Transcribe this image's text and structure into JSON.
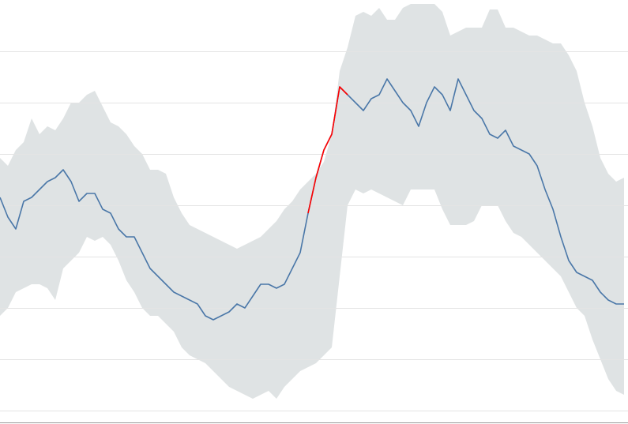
{
  "chart_data": {
    "type": "line",
    "x": [
      0,
      1,
      2,
      3,
      4,
      5,
      6,
      7,
      8,
      9,
      10,
      11,
      12,
      13,
      14,
      15,
      16,
      17,
      18,
      19,
      20,
      21,
      22,
      23,
      24,
      25,
      26,
      27,
      28,
      29,
      30,
      31,
      32,
      33,
      34,
      35,
      36,
      37,
      38,
      39,
      40,
      41,
      42,
      43,
      44,
      45,
      46,
      47,
      48,
      49,
      50,
      51,
      52,
      53,
      54,
      55,
      56,
      57,
      58,
      59,
      60,
      61,
      62,
      63,
      64,
      65,
      66,
      67,
      68,
      69,
      70,
      71,
      72,
      73,
      74,
      75,
      76,
      77,
      78,
      79
    ],
    "xlim": [
      0,
      79.5
    ],
    "ylim": [
      -17,
      520
    ],
    "yticks": [
      0,
      65,
      130,
      195,
      260,
      325,
      390,
      455
    ],
    "grid": true,
    "band": {
      "color": "#dfe3e4",
      "upper": [
        320,
        310,
        330,
        340,
        370,
        350,
        360,
        355,
        370,
        390,
        390,
        400,
        405,
        385,
        365,
        360,
        350,
        335,
        325,
        305,
        305,
        300,
        270,
        250,
        235,
        230,
        225,
        220,
        215,
        210,
        205,
        210,
        215,
        220,
        230,
        240,
        255,
        265,
        280,
        290,
        300,
        315,
        350,
        430,
        460,
        500,
        505,
        500,
        510,
        495,
        495,
        510,
        515,
        515,
        515,
        515,
        505,
        475,
        480,
        485,
        485,
        485,
        508,
        508,
        485,
        485,
        480,
        475,
        475,
        470,
        465,
        465,
        450,
        430,
        390,
        360,
        320,
        300,
        290,
        295
      ],
      "lower": [
        120,
        130,
        150,
        155,
        160,
        160,
        155,
        140,
        180,
        190,
        200,
        220,
        215,
        220,
        210,
        190,
        165,
        150,
        130,
        120,
        120,
        110,
        100,
        80,
        70,
        65,
        60,
        50,
        40,
        30,
        25,
        20,
        15,
        20,
        25,
        15,
        30,
        40,
        50,
        55,
        60,
        70,
        80,
        170,
        260,
        280,
        275,
        280,
        275,
        270,
        265,
        260,
        280,
        280,
        280,
        280,
        255,
        235,
        235,
        235,
        240,
        260,
        260,
        260,
        240,
        225,
        220,
        210,
        200,
        190,
        180,
        170,
        150,
        130,
        120,
        90,
        65,
        40,
        25,
        20
      ]
    },
    "series": [
      {
        "color": "#4a77a8",
        "values": [
          270,
          245,
          230,
          265,
          270,
          280,
          290,
          295,
          305,
          290,
          265,
          275,
          275,
          255,
          250,
          230,
          220,
          220,
          200,
          180,
          170,
          160,
          150,
          145,
          140,
          135,
          120,
          115,
          120,
          125,
          135,
          130,
          145,
          160,
          160,
          155,
          160,
          180,
          200,
          250,
          295,
          330,
          350,
          410,
          400,
          390,
          380,
          395,
          400,
          420,
          405,
          390,
          380,
          360,
          390,
          410,
          400,
          380,
          420,
          400,
          380,
          370,
          350,
          345,
          355,
          335,
          330,
          325,
          310,
          280,
          255,
          220,
          190,
          175,
          170,
          165,
          150,
          140,
          135,
          135
        ]
      },
      {
        "color": "#ff0000",
        "values": [
          null,
          null,
          null,
          null,
          null,
          null,
          null,
          null,
          null,
          null,
          null,
          null,
          null,
          null,
          null,
          null,
          null,
          null,
          null,
          null,
          null,
          null,
          null,
          null,
          null,
          null,
          null,
          null,
          null,
          null,
          null,
          null,
          null,
          null,
          null,
          null,
          null,
          null,
          null,
          250,
          295,
          330,
          350,
          410,
          400,
          null,
          null,
          null,
          null,
          null,
          null,
          null,
          null,
          null,
          null,
          null,
          null,
          null,
          null,
          null,
          null,
          null,
          null,
          null,
          null,
          null,
          null,
          null,
          null,
          null,
          null,
          null,
          null,
          null,
          null,
          null,
          null,
          null,
          null,
          null
        ]
      }
    ]
  }
}
